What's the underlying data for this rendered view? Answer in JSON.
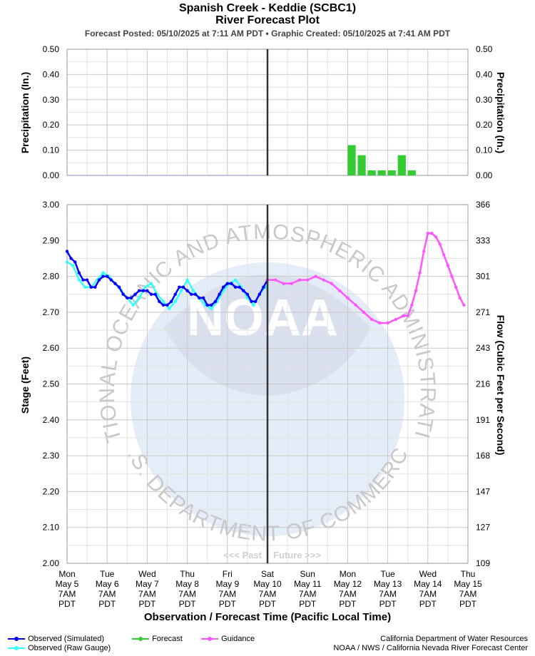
{
  "header": {
    "title_line1": "Spanish Creek - Keddie (SCBC1)",
    "title_line2": "River Forecast Plot",
    "subtitle": "Forecast Posted: 05/10/2025 at 7:11 AM PDT  •  Graphic Created: 05/10/2025 at 7:41 AM PDT"
  },
  "labels": {
    "precip_axis": "Precipitation (In.)",
    "stage_axis": "Stage (Feet)",
    "flow_axis": "Flow (Cubic Feet per Second)",
    "x_axis": "Observation / Forecast Time (Pacific Local Time)",
    "past": "<<< Past",
    "future": "Future >>>"
  },
  "legend": [
    {
      "label": "Observed (Simulated)",
      "color": "#0000ff"
    },
    {
      "label": "Observed (Raw Gauge)",
      "color": "#33ffff"
    },
    {
      "label": "Forecast",
      "color": "#33cc33"
    },
    {
      "label": "Guidance",
      "color": "#ff55ff"
    }
  ],
  "credits": {
    "line1": "California Department of Water Resources",
    "line2": "NOAA / NWS / California Nevada River Forecast Center"
  },
  "watermark": {
    "ring_text": "NATIONAL OCEANIC AND ATMOSPHERIC ADMINISTRATION",
    "bottom_text": "U.S. DEPARTMENT OF COMMERCE",
    "logo_text": "NOAA"
  },
  "chart_data": [
    {
      "type": "bar",
      "x_unit": "days since Mon May 5 7AM PDT",
      "precip_ylim": [
        0,
        0.5
      ],
      "precip_yticks": [
        "0.50",
        "0.40",
        "0.30",
        "0.20",
        "0.10",
        "0.00"
      ],
      "now_x": 5,
      "observed_precip": {
        "from": 0,
        "to": 5,
        "value": 0
      },
      "forecast_bars": [
        {
          "x_start": 7.0,
          "value": 0.12
        },
        {
          "x_start": 7.25,
          "value": 0.08
        },
        {
          "x_start": 7.5,
          "value": 0.02
        },
        {
          "x_start": 7.75,
          "value": 0.02
        },
        {
          "x_start": 8.0,
          "value": 0.02
        },
        {
          "x_start": 8.25,
          "value": 0.08
        },
        {
          "x_start": 8.5,
          "value": 0.02
        }
      ],
      "bar_width_days": 0.2
    },
    {
      "type": "line",
      "ylim": [
        2.0,
        3.0
      ],
      "stage_ticks": [
        "3.00",
        "2.90",
        "2.80",
        "2.70",
        "2.60",
        "2.50",
        "2.40",
        "2.30",
        "2.20",
        "2.10",
        "2.00"
      ],
      "flow_ticks": [
        "366",
        "333",
        "301",
        "271",
        "243",
        "216",
        "191",
        "168",
        "147",
        "127",
        "109"
      ],
      "x_ticks": [
        {
          "x": 0,
          "lines": [
            "Mon",
            "May 5",
            "7AM",
            "PDT"
          ]
        },
        {
          "x": 1,
          "lines": [
            "Tue",
            "May 6",
            "7AM",
            "PDT"
          ]
        },
        {
          "x": 2,
          "lines": [
            "Wed",
            "May 7",
            "7AM",
            "PDT"
          ]
        },
        {
          "x": 3,
          "lines": [
            "Thu",
            "May 8",
            "7AM",
            "PDT"
          ]
        },
        {
          "x": 4,
          "lines": [
            "Fri",
            "May 9",
            "7AM",
            "PDT"
          ]
        },
        {
          "x": 5,
          "lines": [
            "Sat",
            "May 10",
            "7AM",
            "PDT"
          ]
        },
        {
          "x": 6,
          "lines": [
            "Sun",
            "May 11",
            "7AM",
            "PDT"
          ]
        },
        {
          "x": 7,
          "lines": [
            "Mon",
            "May 12",
            "7AM",
            "PDT"
          ]
        },
        {
          "x": 8,
          "lines": [
            "Tue",
            "May 13",
            "7AM",
            "PDT"
          ]
        },
        {
          "x": 9,
          "lines": [
            "Wed",
            "May 14",
            "7AM",
            "PDT"
          ]
        },
        {
          "x": 10,
          "lines": [
            "Thu",
            "May 15",
            "7AM",
            "PDT"
          ]
        }
      ],
      "series": [
        {
          "name": "Observed (Raw Gauge)",
          "color": "#33ffff",
          "points": [
            [
              0.0,
              2.84
            ],
            [
              0.15,
              2.83
            ],
            [
              0.3,
              2.79
            ],
            [
              0.45,
              2.77
            ],
            [
              0.6,
              2.77
            ],
            [
              0.75,
              2.79
            ],
            [
              0.9,
              2.81
            ],
            [
              1.05,
              2.8
            ],
            [
              1.2,
              2.78
            ],
            [
              1.35,
              2.76
            ],
            [
              1.5,
              2.74
            ],
            [
              1.65,
              2.72
            ],
            [
              1.8,
              2.74
            ],
            [
              1.95,
              2.77
            ],
            [
              2.1,
              2.78
            ],
            [
              2.25,
              2.75
            ],
            [
              2.4,
              2.73
            ],
            [
              2.55,
              2.71
            ],
            [
              2.7,
              2.73
            ],
            [
              2.85,
              2.76
            ],
            [
              3.0,
              2.79
            ],
            [
              3.15,
              2.76
            ],
            [
              3.3,
              2.74
            ],
            [
              3.45,
              2.72
            ],
            [
              3.6,
              2.71
            ],
            [
              3.75,
              2.73
            ],
            [
              3.9,
              2.76
            ],
            [
              4.05,
              2.78
            ],
            [
              4.2,
              2.79
            ],
            [
              4.35,
              2.77
            ],
            [
              4.5,
              2.74
            ],
            [
              4.65,
              2.72
            ],
            [
              4.8,
              2.75
            ],
            [
              4.95,
              2.77
            ]
          ]
        },
        {
          "name": "Observed (Simulated)",
          "color": "#0000ff",
          "points": [
            [
              0.0,
              2.87
            ],
            [
              0.1,
              2.85
            ],
            [
              0.2,
              2.84
            ],
            [
              0.3,
              2.81
            ],
            [
              0.4,
              2.79
            ],
            [
              0.5,
              2.79
            ],
            [
              0.6,
              2.77
            ],
            [
              0.7,
              2.77
            ],
            [
              0.8,
              2.79
            ],
            [
              0.9,
              2.8
            ],
            [
              1.0,
              2.8
            ],
            [
              1.1,
              2.79
            ],
            [
              1.2,
              2.78
            ],
            [
              1.3,
              2.77
            ],
            [
              1.4,
              2.75
            ],
            [
              1.5,
              2.74
            ],
            [
              1.6,
              2.74
            ],
            [
              1.7,
              2.75
            ],
            [
              1.8,
              2.76
            ],
            [
              1.9,
              2.76
            ],
            [
              2.0,
              2.76
            ],
            [
              2.1,
              2.75
            ],
            [
              2.2,
              2.75
            ],
            [
              2.3,
              2.73
            ],
            [
              2.4,
              2.72
            ],
            [
              2.5,
              2.72
            ],
            [
              2.6,
              2.73
            ],
            [
              2.7,
              2.75
            ],
            [
              2.8,
              2.77
            ],
            [
              2.9,
              2.77
            ],
            [
              3.0,
              2.76
            ],
            [
              3.1,
              2.75
            ],
            [
              3.2,
              2.75
            ],
            [
              3.3,
              2.74
            ],
            [
              3.4,
              2.74
            ],
            [
              3.5,
              2.72
            ],
            [
              3.6,
              2.72
            ],
            [
              3.7,
              2.73
            ],
            [
              3.8,
              2.75
            ],
            [
              3.9,
              2.77
            ],
            [
              4.0,
              2.78
            ],
            [
              4.1,
              2.78
            ],
            [
              4.2,
              2.77
            ],
            [
              4.3,
              2.77
            ],
            [
              4.4,
              2.76
            ],
            [
              4.5,
              2.75
            ],
            [
              4.6,
              2.73
            ],
            [
              4.7,
              2.73
            ],
            [
              4.8,
              2.75
            ],
            [
              4.9,
              2.77
            ],
            [
              5.0,
              2.79
            ]
          ]
        },
        {
          "name": "Guidance",
          "color": "#ff55ff",
          "points": [
            [
              5.0,
              2.79
            ],
            [
              5.2,
              2.79
            ],
            [
              5.4,
              2.78
            ],
            [
              5.6,
              2.78
            ],
            [
              5.8,
              2.79
            ],
            [
              6.0,
              2.79
            ],
            [
              6.2,
              2.8
            ],
            [
              6.4,
              2.79
            ],
            [
              6.6,
              2.78
            ],
            [
              6.8,
              2.76
            ],
            [
              7.0,
              2.74
            ],
            [
              7.2,
              2.72
            ],
            [
              7.4,
              2.7
            ],
            [
              7.6,
              2.68
            ],
            [
              7.8,
              2.67
            ],
            [
              8.0,
              2.67
            ],
            [
              8.2,
              2.68
            ],
            [
              8.4,
              2.69
            ],
            [
              8.5,
              2.69
            ],
            [
              8.6,
              2.72
            ],
            [
              8.7,
              2.76
            ],
            [
              8.8,
              2.81
            ],
            [
              8.9,
              2.87
            ],
            [
              9.0,
              2.92
            ],
            [
              9.1,
              2.92
            ],
            [
              9.2,
              2.91
            ],
            [
              9.3,
              2.89
            ],
            [
              9.4,
              2.86
            ],
            [
              9.5,
              2.83
            ],
            [
              9.6,
              2.8
            ],
            [
              9.7,
              2.77
            ],
            [
              9.8,
              2.74
            ],
            [
              9.9,
              2.72
            ]
          ]
        }
      ]
    }
  ]
}
